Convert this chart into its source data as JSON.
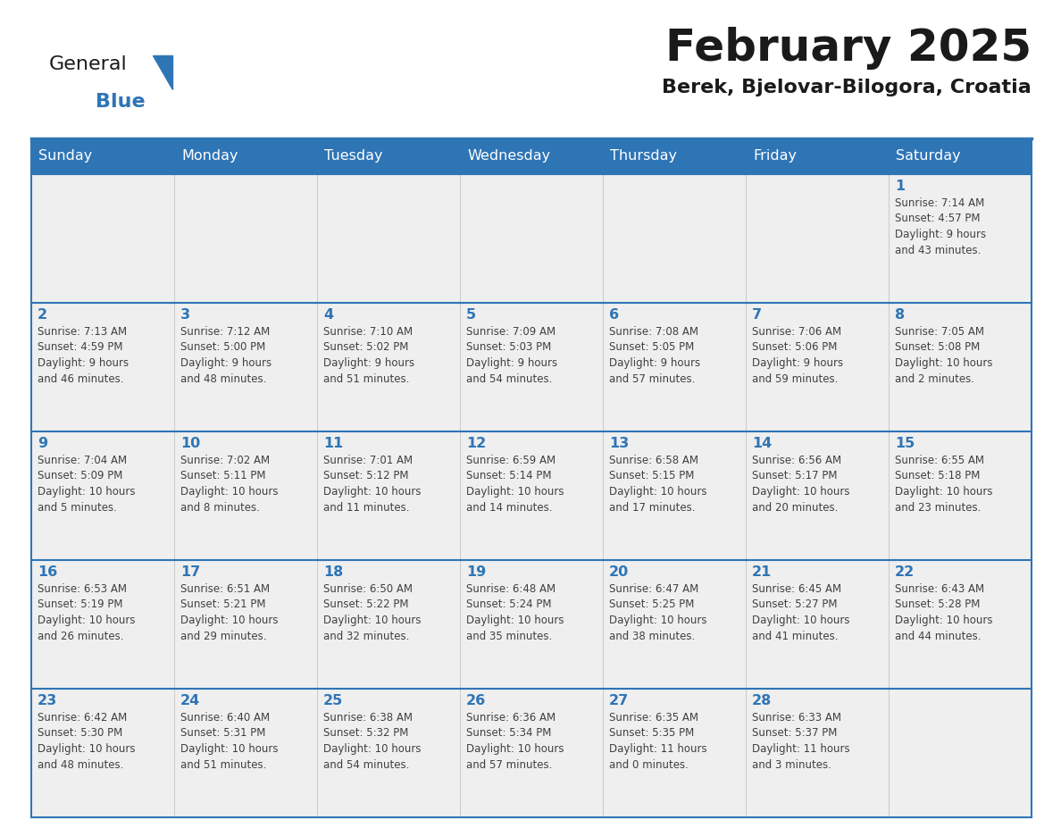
{
  "title": "February 2025",
  "subtitle": "Berek, Bjelovar-Bilogora, Croatia",
  "header_bg": "#2E75B6",
  "header_text_color": "#FFFFFF",
  "cell_bg": "#EFEFEF",
  "day_number_color": "#2E75B6",
  "info_text_color": "#404040",
  "grid_line_color": "#2E75B6",
  "days_of_week": [
    "Sunday",
    "Monday",
    "Tuesday",
    "Wednesday",
    "Thursday",
    "Friday",
    "Saturday"
  ],
  "weeks": [
    [
      {
        "day": null,
        "info": ""
      },
      {
        "day": null,
        "info": ""
      },
      {
        "day": null,
        "info": ""
      },
      {
        "day": null,
        "info": ""
      },
      {
        "day": null,
        "info": ""
      },
      {
        "day": null,
        "info": ""
      },
      {
        "day": 1,
        "info": "Sunrise: 7:14 AM\nSunset: 4:57 PM\nDaylight: 9 hours\nand 43 minutes."
      }
    ],
    [
      {
        "day": 2,
        "info": "Sunrise: 7:13 AM\nSunset: 4:59 PM\nDaylight: 9 hours\nand 46 minutes."
      },
      {
        "day": 3,
        "info": "Sunrise: 7:12 AM\nSunset: 5:00 PM\nDaylight: 9 hours\nand 48 minutes."
      },
      {
        "day": 4,
        "info": "Sunrise: 7:10 AM\nSunset: 5:02 PM\nDaylight: 9 hours\nand 51 minutes."
      },
      {
        "day": 5,
        "info": "Sunrise: 7:09 AM\nSunset: 5:03 PM\nDaylight: 9 hours\nand 54 minutes."
      },
      {
        "day": 6,
        "info": "Sunrise: 7:08 AM\nSunset: 5:05 PM\nDaylight: 9 hours\nand 57 minutes."
      },
      {
        "day": 7,
        "info": "Sunrise: 7:06 AM\nSunset: 5:06 PM\nDaylight: 9 hours\nand 59 minutes."
      },
      {
        "day": 8,
        "info": "Sunrise: 7:05 AM\nSunset: 5:08 PM\nDaylight: 10 hours\nand 2 minutes."
      }
    ],
    [
      {
        "day": 9,
        "info": "Sunrise: 7:04 AM\nSunset: 5:09 PM\nDaylight: 10 hours\nand 5 minutes."
      },
      {
        "day": 10,
        "info": "Sunrise: 7:02 AM\nSunset: 5:11 PM\nDaylight: 10 hours\nand 8 minutes."
      },
      {
        "day": 11,
        "info": "Sunrise: 7:01 AM\nSunset: 5:12 PM\nDaylight: 10 hours\nand 11 minutes."
      },
      {
        "day": 12,
        "info": "Sunrise: 6:59 AM\nSunset: 5:14 PM\nDaylight: 10 hours\nand 14 minutes."
      },
      {
        "day": 13,
        "info": "Sunrise: 6:58 AM\nSunset: 5:15 PM\nDaylight: 10 hours\nand 17 minutes."
      },
      {
        "day": 14,
        "info": "Sunrise: 6:56 AM\nSunset: 5:17 PM\nDaylight: 10 hours\nand 20 minutes."
      },
      {
        "day": 15,
        "info": "Sunrise: 6:55 AM\nSunset: 5:18 PM\nDaylight: 10 hours\nand 23 minutes."
      }
    ],
    [
      {
        "day": 16,
        "info": "Sunrise: 6:53 AM\nSunset: 5:19 PM\nDaylight: 10 hours\nand 26 minutes."
      },
      {
        "day": 17,
        "info": "Sunrise: 6:51 AM\nSunset: 5:21 PM\nDaylight: 10 hours\nand 29 minutes."
      },
      {
        "day": 18,
        "info": "Sunrise: 6:50 AM\nSunset: 5:22 PM\nDaylight: 10 hours\nand 32 minutes."
      },
      {
        "day": 19,
        "info": "Sunrise: 6:48 AM\nSunset: 5:24 PM\nDaylight: 10 hours\nand 35 minutes."
      },
      {
        "day": 20,
        "info": "Sunrise: 6:47 AM\nSunset: 5:25 PM\nDaylight: 10 hours\nand 38 minutes."
      },
      {
        "day": 21,
        "info": "Sunrise: 6:45 AM\nSunset: 5:27 PM\nDaylight: 10 hours\nand 41 minutes."
      },
      {
        "day": 22,
        "info": "Sunrise: 6:43 AM\nSunset: 5:28 PM\nDaylight: 10 hours\nand 44 minutes."
      }
    ],
    [
      {
        "day": 23,
        "info": "Sunrise: 6:42 AM\nSunset: 5:30 PM\nDaylight: 10 hours\nand 48 minutes."
      },
      {
        "day": 24,
        "info": "Sunrise: 6:40 AM\nSunset: 5:31 PM\nDaylight: 10 hours\nand 51 minutes."
      },
      {
        "day": 25,
        "info": "Sunrise: 6:38 AM\nSunset: 5:32 PM\nDaylight: 10 hours\nand 54 minutes."
      },
      {
        "day": 26,
        "info": "Sunrise: 6:36 AM\nSunset: 5:34 PM\nDaylight: 10 hours\nand 57 minutes."
      },
      {
        "day": 27,
        "info": "Sunrise: 6:35 AM\nSunset: 5:35 PM\nDaylight: 11 hours\nand 0 minutes."
      },
      {
        "day": 28,
        "info": "Sunrise: 6:33 AM\nSunset: 5:37 PM\nDaylight: 11 hours\nand 3 minutes."
      },
      {
        "day": null,
        "info": ""
      }
    ]
  ],
  "logo_text1": "General",
  "logo_text2": "Blue",
  "logo_color1": "#1a1a1a",
  "logo_color2": "#2E75B6",
  "logo_triangle_color": "#2E75B6",
  "fig_width": 11.88,
  "fig_height": 9.18,
  "dpi": 100
}
